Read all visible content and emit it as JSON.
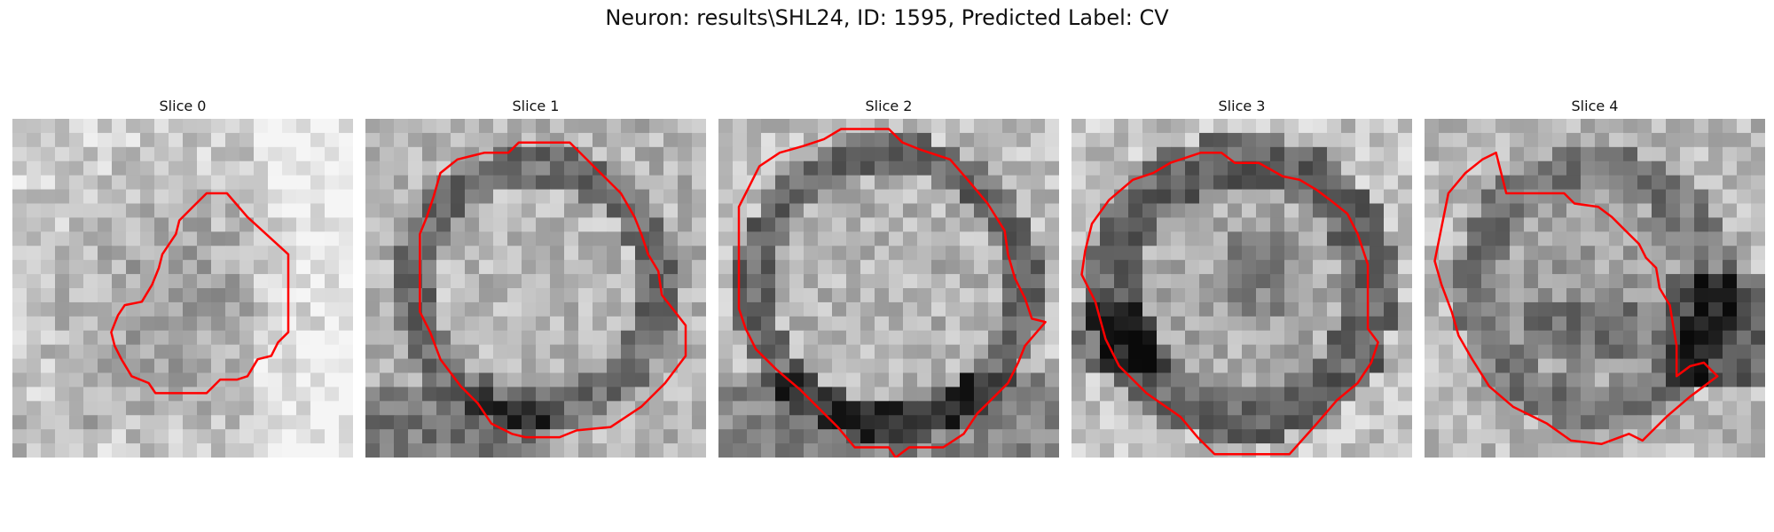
{
  "figure": {
    "title": "Neuron: results\\SHL24, ID: 1595, Predicted Label: CV"
  },
  "contour_color": "#ff0000",
  "slices": [
    {
      "title": "Slice 0",
      "seed": 11,
      "pattern": "dim-blob",
      "contour": [
        [
          0.57,
          0.22
        ],
        [
          0.63,
          0.22
        ],
        [
          0.69,
          0.29
        ],
        [
          0.81,
          0.4
        ],
        [
          0.81,
          0.63
        ],
        [
          0.78,
          0.66
        ],
        [
          0.76,
          0.7
        ],
        [
          0.72,
          0.71
        ],
        [
          0.69,
          0.76
        ],
        [
          0.66,
          0.77
        ],
        [
          0.61,
          0.77
        ],
        [
          0.57,
          0.81
        ],
        [
          0.42,
          0.81
        ],
        [
          0.4,
          0.78
        ],
        [
          0.35,
          0.76
        ],
        [
          0.32,
          0.71
        ],
        [
          0.3,
          0.67
        ],
        [
          0.29,
          0.63
        ],
        [
          0.31,
          0.58
        ],
        [
          0.33,
          0.55
        ],
        [
          0.38,
          0.54
        ],
        [
          0.41,
          0.49
        ],
        [
          0.43,
          0.44
        ],
        [
          0.44,
          0.4
        ],
        [
          0.48,
          0.34
        ],
        [
          0.49,
          0.3
        ],
        [
          0.53,
          0.26
        ]
      ]
    },
    {
      "title": "Slice 1",
      "seed": 23,
      "pattern": "bright-center",
      "contour": [
        [
          0.45,
          0.07
        ],
        [
          0.6,
          0.07
        ],
        [
          0.75,
          0.22
        ],
        [
          0.79,
          0.29
        ],
        [
          0.81,
          0.34
        ],
        [
          0.83,
          0.4
        ],
        [
          0.86,
          0.45
        ],
        [
          0.87,
          0.52
        ],
        [
          0.94,
          0.61
        ],
        [
          0.94,
          0.7
        ],
        [
          0.88,
          0.78
        ],
        [
          0.81,
          0.85
        ],
        [
          0.72,
          0.91
        ],
        [
          0.62,
          0.92
        ],
        [
          0.57,
          0.94
        ],
        [
          0.47,
          0.94
        ],
        [
          0.43,
          0.93
        ],
        [
          0.37,
          0.9
        ],
        [
          0.33,
          0.84
        ],
        [
          0.28,
          0.79
        ],
        [
          0.22,
          0.71
        ],
        [
          0.19,
          0.63
        ],
        [
          0.16,
          0.57
        ],
        [
          0.16,
          0.34
        ],
        [
          0.18,
          0.29
        ],
        [
          0.2,
          0.23
        ],
        [
          0.22,
          0.16
        ],
        [
          0.27,
          0.12
        ],
        [
          0.31,
          0.11
        ],
        [
          0.35,
          0.1
        ],
        [
          0.42,
          0.1
        ]
      ]
    },
    {
      "title": "Slice 2",
      "seed": 37,
      "pattern": "ring",
      "contour": [
        [
          0.36,
          0.03
        ],
        [
          0.5,
          0.03
        ],
        [
          0.54,
          0.07
        ],
        [
          0.59,
          0.09
        ],
        [
          0.68,
          0.12
        ],
        [
          0.74,
          0.19
        ],
        [
          0.79,
          0.25
        ],
        [
          0.84,
          0.33
        ],
        [
          0.85,
          0.4
        ],
        [
          0.87,
          0.47
        ],
        [
          0.9,
          0.53
        ],
        [
          0.92,
          0.59
        ],
        [
          0.96,
          0.6
        ],
        [
          0.9,
          0.67
        ],
        [
          0.88,
          0.72
        ],
        [
          0.85,
          0.78
        ],
        [
          0.8,
          0.83
        ],
        [
          0.76,
          0.87
        ],
        [
          0.72,
          0.93
        ],
        [
          0.66,
          0.97
        ],
        [
          0.56,
          0.97
        ],
        [
          0.52,
          1.0
        ],
        [
          0.5,
          0.97
        ],
        [
          0.4,
          0.97
        ],
        [
          0.35,
          0.91
        ],
        [
          0.3,
          0.86
        ],
        [
          0.24,
          0.8
        ],
        [
          0.17,
          0.74
        ],
        [
          0.11,
          0.68
        ],
        [
          0.08,
          0.62
        ],
        [
          0.06,
          0.56
        ],
        [
          0.06,
          0.26
        ],
        [
          0.09,
          0.2
        ],
        [
          0.12,
          0.14
        ],
        [
          0.18,
          0.1
        ],
        [
          0.25,
          0.08
        ],
        [
          0.31,
          0.06
        ]
      ]
    },
    {
      "title": "Slice 3",
      "seed": 41,
      "pattern": "ring-dark-bottom",
      "contour": [
        [
          0.38,
          0.1
        ],
        [
          0.44,
          0.1
        ],
        [
          0.48,
          0.13
        ],
        [
          0.55,
          0.13
        ],
        [
          0.62,
          0.17
        ],
        [
          0.67,
          0.18
        ],
        [
          0.72,
          0.21
        ],
        [
          0.76,
          0.24
        ],
        [
          0.81,
          0.28
        ],
        [
          0.84,
          0.34
        ],
        [
          0.87,
          0.43
        ],
        [
          0.87,
          0.62
        ],
        [
          0.9,
          0.66
        ],
        [
          0.88,
          0.72
        ],
        [
          0.84,
          0.78
        ],
        [
          0.78,
          0.83
        ],
        [
          0.72,
          0.9
        ],
        [
          0.64,
          0.99
        ],
        [
          0.42,
          0.99
        ],
        [
          0.37,
          0.94
        ],
        [
          0.32,
          0.88
        ],
        [
          0.22,
          0.81
        ],
        [
          0.14,
          0.73
        ],
        [
          0.1,
          0.65
        ],
        [
          0.07,
          0.54
        ],
        [
          0.03,
          0.46
        ],
        [
          0.04,
          0.39
        ],
        [
          0.06,
          0.31
        ],
        [
          0.11,
          0.24
        ],
        [
          0.18,
          0.18
        ],
        [
          0.24,
          0.16
        ],
        [
          0.29,
          0.13
        ]
      ]
    },
    {
      "title": "Slice 4",
      "seed": 53,
      "pattern": "ring-dark-right",
      "contour": [
        [
          0.24,
          0.22
        ],
        [
          0.41,
          0.22
        ],
        [
          0.44,
          0.25
        ],
        [
          0.51,
          0.26
        ],
        [
          0.55,
          0.29
        ],
        [
          0.59,
          0.33
        ],
        [
          0.63,
          0.37
        ],
        [
          0.65,
          0.41
        ],
        [
          0.68,
          0.44
        ],
        [
          0.69,
          0.5
        ],
        [
          0.72,
          0.55
        ],
        [
          0.73,
          0.61
        ],
        [
          0.74,
          0.67
        ],
        [
          0.74,
          0.76
        ],
        [
          0.78,
          0.73
        ],
        [
          0.82,
          0.72
        ],
        [
          0.84,
          0.74
        ],
        [
          0.86,
          0.76
        ],
        [
          0.78,
          0.82
        ],
        [
          0.71,
          0.88
        ],
        [
          0.64,
          0.95
        ],
        [
          0.6,
          0.93
        ],
        [
          0.52,
          0.96
        ],
        [
          0.43,
          0.95
        ],
        [
          0.36,
          0.9
        ],
        [
          0.26,
          0.85
        ],
        [
          0.19,
          0.79
        ],
        [
          0.14,
          0.71
        ],
        [
          0.1,
          0.64
        ],
        [
          0.08,
          0.57
        ],
        [
          0.05,
          0.49
        ],
        [
          0.03,
          0.42
        ],
        [
          0.05,
          0.32
        ],
        [
          0.07,
          0.22
        ],
        [
          0.12,
          0.16
        ],
        [
          0.17,
          0.12
        ],
        [
          0.21,
          0.1
        ]
      ]
    }
  ]
}
